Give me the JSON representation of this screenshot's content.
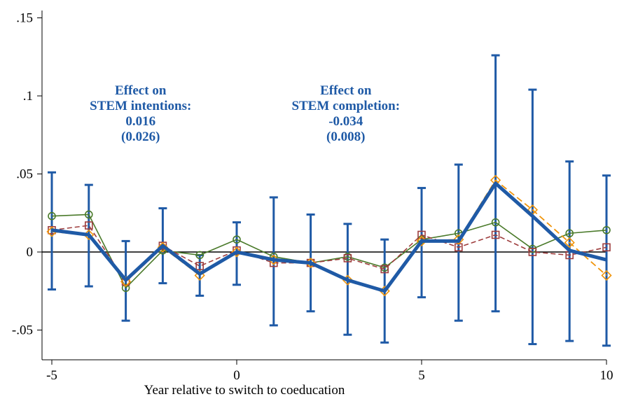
{
  "chart_data": {
    "type": "line",
    "title": "",
    "xlabel": "Year relative to switch to coeducation",
    "ylabel": "",
    "xlim": [
      -5,
      10
    ],
    "ylim": [
      -0.062,
      0.16
    ],
    "x_ticks": [
      -5,
      0,
      5,
      10
    ],
    "x_tick_labels": [
      "-5",
      "0",
      "5",
      "10"
    ],
    "y_ticks": [
      -0.05,
      0,
      0.05,
      0.1,
      0.15
    ],
    "y_tick_labels": [
      "-.05",
      "0",
      ".05",
      ".1",
      ".15"
    ],
    "reference_line": 0,
    "grid": false,
    "x": [
      -5,
      -4,
      -3,
      -2,
      -1,
      0,
      1,
      2,
      3,
      4,
      5,
      6,
      7,
      8,
      9,
      10
    ],
    "series": [
      {
        "marker": "circle",
        "color": "#4a7a2a",
        "values": [
          0.023,
          0.024,
          -0.023,
          0.001,
          -0.002,
          0.008,
          -0.003,
          -0.007,
          -0.003,
          -0.01,
          0.008,
          0.012,
          0.019,
          0.002,
          0.012,
          0.014
        ]
      },
      {
        "marker": "square",
        "color": "#9e3d3d",
        "values": [
          0.014,
          0.017,
          -0.019,
          0.004,
          -0.009,
          0.001,
          -0.007,
          -0.007,
          -0.004,
          -0.011,
          0.011,
          0.003,
          0.011,
          0.0,
          -0.002,
          0.003
        ]
      },
      {
        "marker": "diamond",
        "color": "#f0940a",
        "values": [
          0.013,
          0.011,
          -0.019,
          0.003,
          -0.015,
          0.0,
          -0.005,
          -0.007,
          -0.018,
          -0.025,
          0.007,
          0.008,
          0.046,
          0.027,
          0.006,
          -0.015
        ]
      },
      {
        "marker": "none",
        "color": "#1f5aa6",
        "values": [
          0.014,
          0.011,
          -0.018,
          0.004,
          -0.014,
          0.0,
          -0.005,
          -0.007,
          -0.018,
          -0.025,
          0.007,
          0.007,
          0.044,
          0.023,
          0.001,
          -0.005
        ],
        "ci_lower": [
          -0.024,
          -0.022,
          -0.044,
          -0.02,
          -0.028,
          -0.021,
          -0.047,
          -0.038,
          -0.053,
          -0.058,
          -0.029,
          -0.044,
          -0.038,
          -0.059,
          -0.057,
          -0.06
        ],
        "ci_upper": [
          0.051,
          0.043,
          0.007,
          0.028,
          -0.002,
          0.019,
          0.035,
          0.024,
          0.018,
          0.008,
          0.041,
          0.056,
          0.126,
          0.104,
          0.058,
          0.049
        ]
      }
    ],
    "annotations": [
      {
        "lines": [
          "Effect on",
          "STEM intentions:",
          "0.016",
          "(0.026)"
        ],
        "x": -2.6,
        "y": 0.101,
        "color": "#1f5aa6"
      },
      {
        "lines": [
          "Effect on",
          "STEM completion:",
          "-0.034",
          "(0.008)"
        ],
        "x": 2.95,
        "y": 0.101,
        "color": "#1f5aa6"
      }
    ]
  }
}
